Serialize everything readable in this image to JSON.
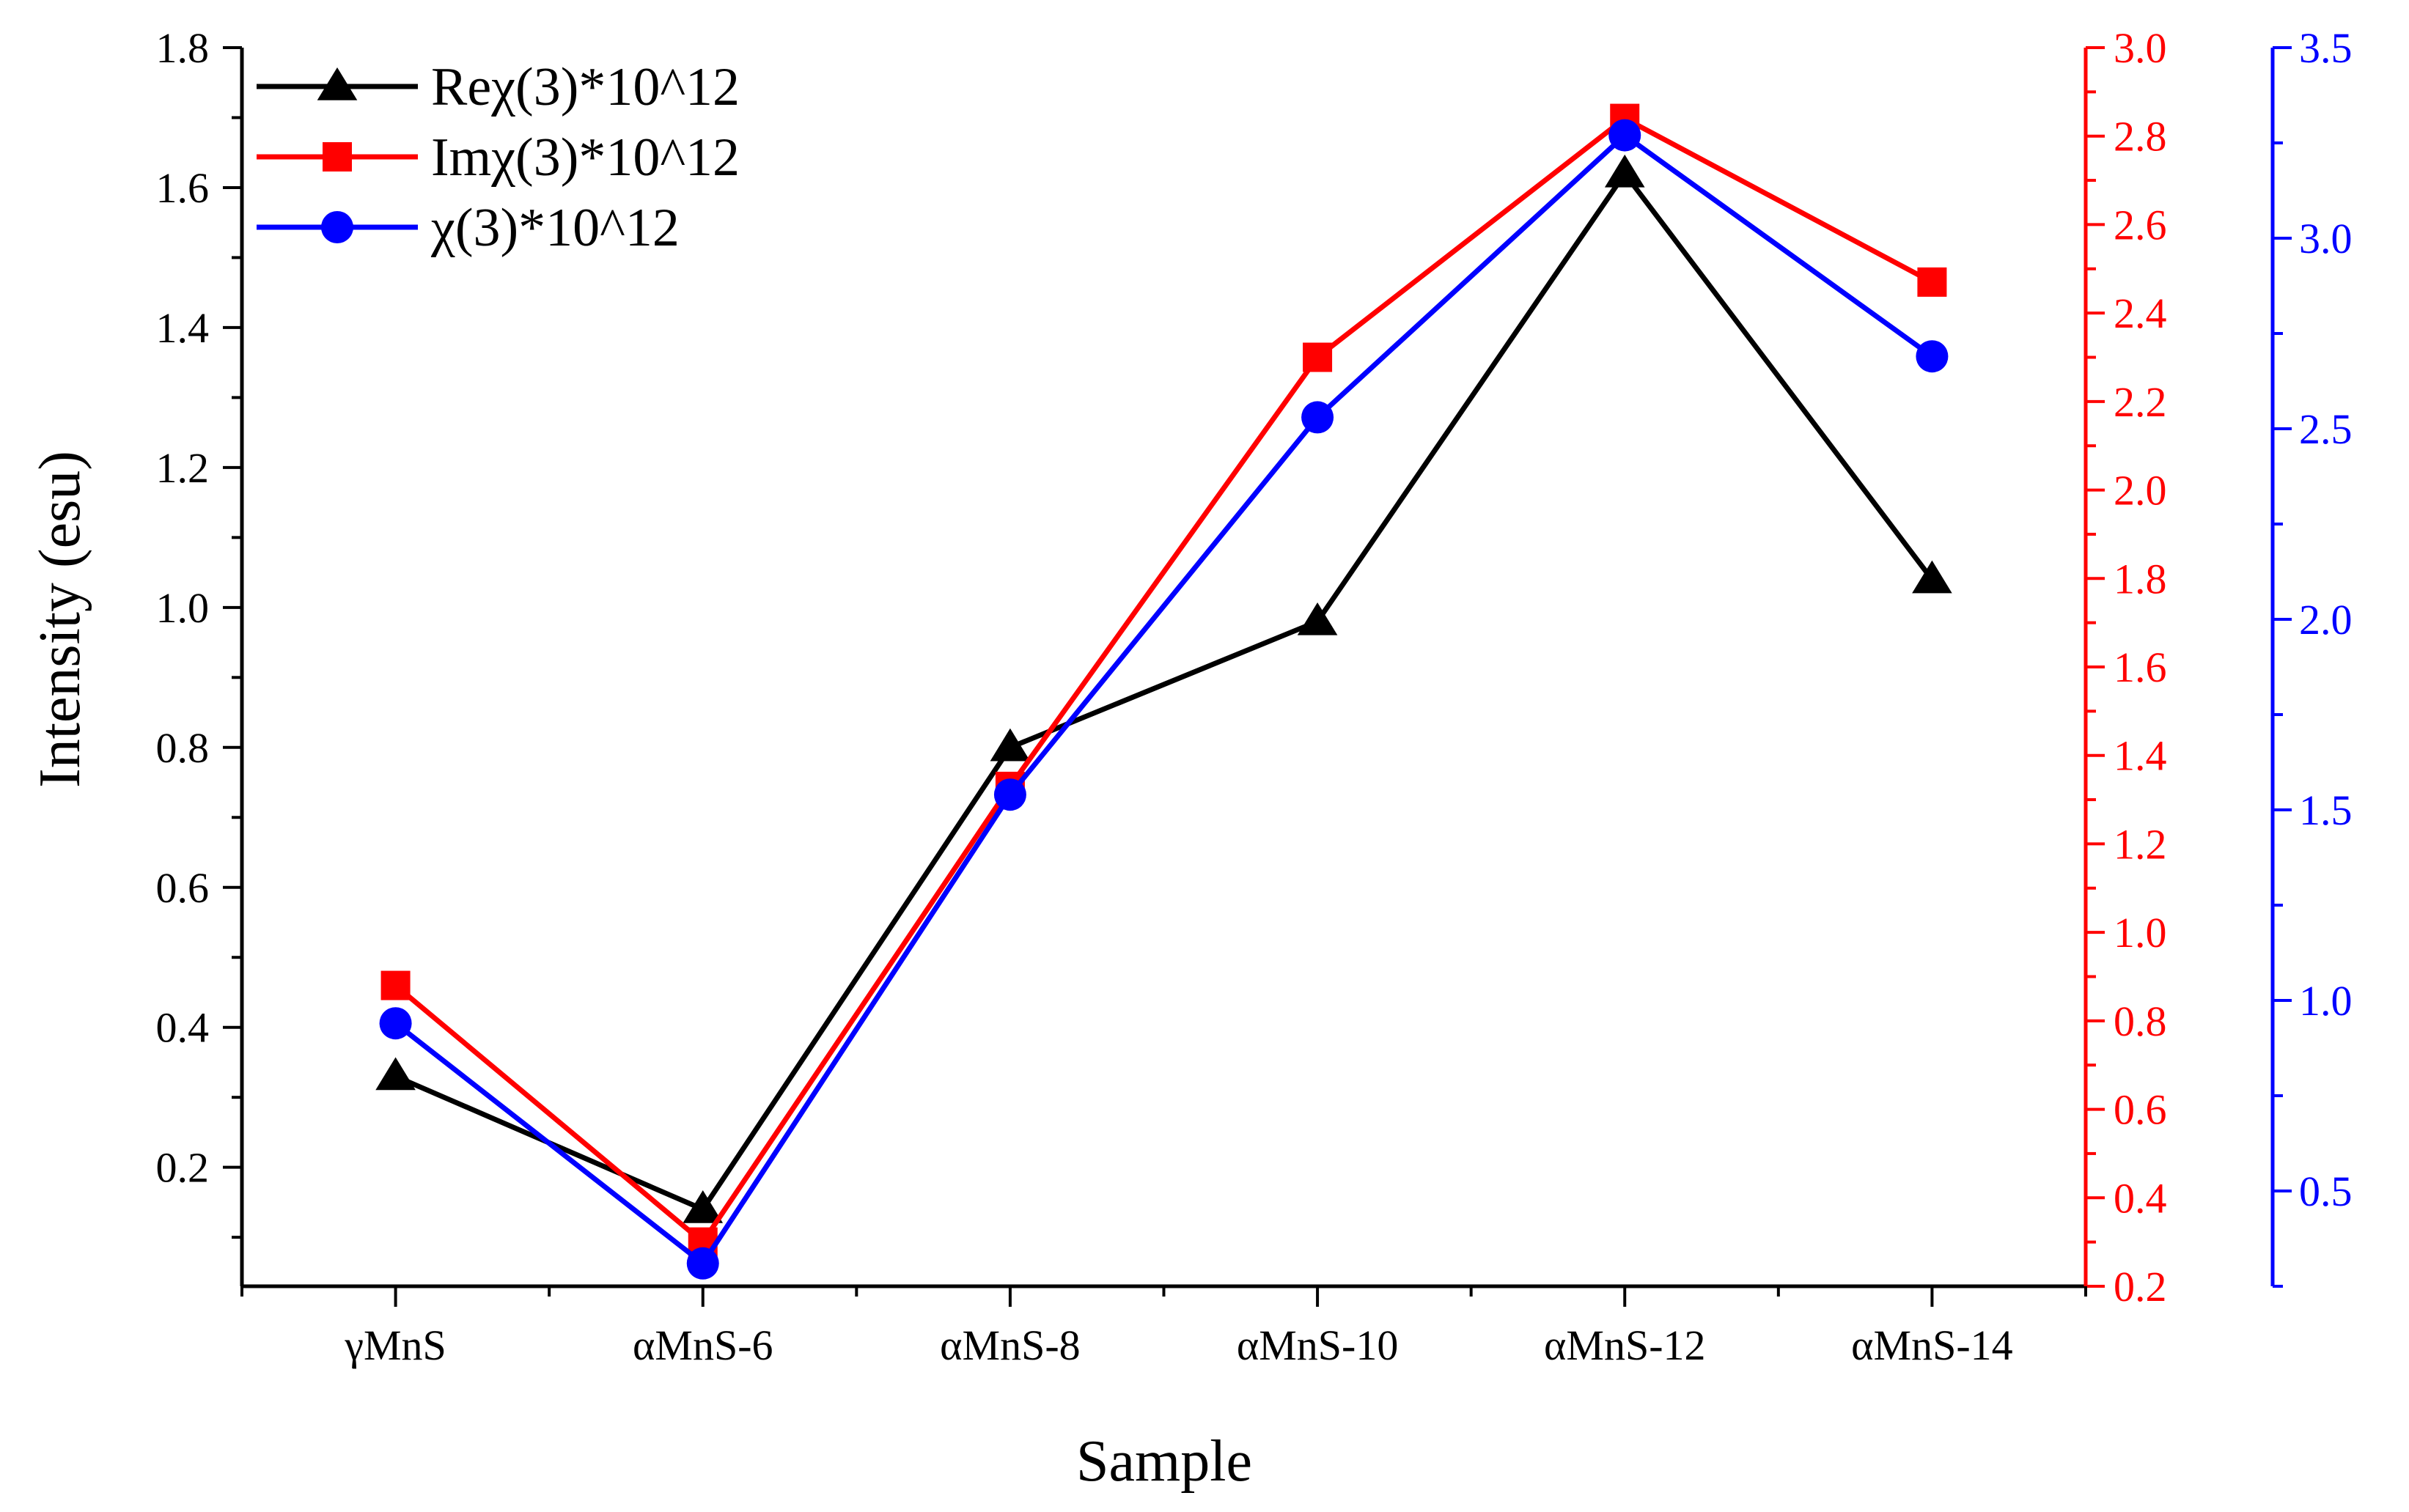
{
  "chart_data": {
    "type": "line",
    "categories": [
      "γMnS",
      "αMnS-6",
      "αMnS-8",
      "αMnS-10",
      "αMnS-12",
      "αMnS-14"
    ],
    "xlabel": "Sample",
    "ylabel": "Intensity (esu)",
    "axes": {
      "left": {
        "min": 0.03,
        "max": 1.8,
        "ticks": [
          0.2,
          0.4,
          0.6,
          0.8,
          1.0,
          1.2,
          1.4,
          1.6,
          1.8
        ],
        "labels": [
          "0.2",
          "0.4",
          "0.6",
          "0.8",
          "1.0",
          "1.2",
          "1.4",
          "1.6",
          "1.8"
        ],
        "color": "#000000"
      },
      "right1": {
        "min": 0.2,
        "max": 3.0,
        "ticks": [
          0.2,
          0.4,
          0.6,
          0.8,
          1.0,
          1.2,
          1.4,
          1.6,
          1.8,
          2.0,
          2.2,
          2.4,
          2.6,
          2.8,
          3.0
        ],
        "labels": [
          "0.2",
          "0.4",
          "0.6",
          "0.8",
          "1.0",
          "1.2",
          "1.4",
          "1.6",
          "1.8",
          "2.0",
          "2.2",
          "2.4",
          "2.6",
          "2.8",
          "3.0"
        ],
        "color": "#ff0000"
      },
      "right2": {
        "min": 0.25,
        "max": 3.5,
        "ticks": [
          0.5,
          1.0,
          1.5,
          2.0,
          2.5,
          3.0,
          3.5
        ],
        "labels": [
          "0.5",
          "1.0",
          "1.5",
          "2.0",
          "2.5",
          "3.0",
          "3.5"
        ],
        "color": "#0000ff"
      }
    },
    "series": [
      {
        "name": "Reχ(3)*10^12",
        "axis": "left",
        "marker": "triangle",
        "color": "#000000",
        "values": [
          0.33,
          0.14,
          0.8,
          0.98,
          1.62,
          1.04
        ]
      },
      {
        "name": "Imχ(3)*10^12",
        "axis": "right1",
        "marker": "square",
        "color": "#ff0000",
        "values": [
          0.88,
          0.3,
          1.33,
          2.3,
          2.84,
          2.47
        ]
      },
      {
        "name": "χ(3)*10^12",
        "axis": "right2",
        "marker": "circle",
        "color": "#0000ff",
        "values": [
          0.94,
          0.31,
          1.54,
          2.53,
          3.27,
          2.69
        ]
      }
    ],
    "legend_position": "top-left"
  }
}
